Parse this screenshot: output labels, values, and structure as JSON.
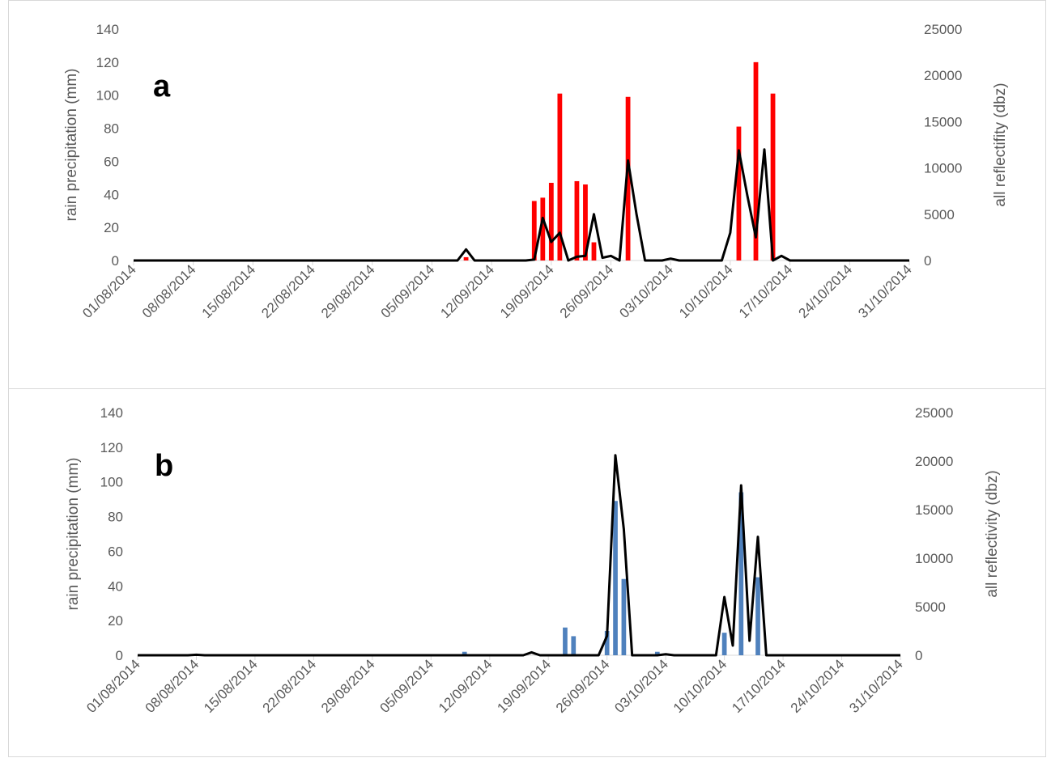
{
  "chart_data": [
    {
      "type": "bar",
      "panel_label": "a",
      "x_tick_labels": [
        "01/08/2014",
        "08/08/2014",
        "15/08/2014",
        "22/08/2014",
        "29/08/2014",
        "05/09/2014",
        "12/09/2014",
        "19/09/2014",
        "26/09/2014",
        "03/10/2014",
        "10/10/2014",
        "17/10/2014",
        "24/10/2014",
        "31/10/2014"
      ],
      "xlim": [
        "01/08/2014",
        "31/10/2014"
      ],
      "ylabel": "rain precipitation (mm)",
      "ylim": [
        0,
        140
      ],
      "yticks": [
        0,
        20,
        40,
        60,
        80,
        100,
        120,
        140
      ],
      "y2label": "all reflectifity (dbz)",
      "y2lim": [
        0,
        25000
      ],
      "y2ticks": [
        0,
        5000,
        10000,
        15000,
        20000,
        25000
      ],
      "bar_color": "#ff0000",
      "line_color": "#000000",
      "series": [
        {
          "type": "bar",
          "axis": "left",
          "points": [
            [
              "09/09/2014",
              2
            ],
            [
              "17/09/2014",
              36
            ],
            [
              "18/09/2014",
              38
            ],
            [
              "19/09/2014",
              47
            ],
            [
              "20/09/2014",
              101
            ],
            [
              "22/09/2014",
              48
            ],
            [
              "23/09/2014",
              46
            ],
            [
              "24/09/2014",
              11
            ],
            [
              "28/09/2014",
              99
            ],
            [
              "11/10/2014",
              81
            ],
            [
              "13/10/2014",
              120
            ],
            [
              "15/10/2014",
              101
            ]
          ]
        },
        {
          "type": "line",
          "axis": "right",
          "points": [
            [
              "01/08/2014",
              0
            ],
            [
              "02/09/2014",
              0
            ],
            [
              "08/09/2014",
              0
            ],
            [
              "09/09/2014",
              1200
            ],
            [
              "10/09/2014",
              0
            ],
            [
              "16/09/2014",
              0
            ],
            [
              "17/09/2014",
              100
            ],
            [
              "18/09/2014",
              4600
            ],
            [
              "19/09/2014",
              2000
            ],
            [
              "20/09/2014",
              3000
            ],
            [
              "21/09/2014",
              0
            ],
            [
              "22/09/2014",
              400
            ],
            [
              "23/09/2014",
              500
            ],
            [
              "24/09/2014",
              5000
            ],
            [
              "25/09/2014",
              300
            ],
            [
              "26/09/2014",
              500
            ],
            [
              "27/09/2014",
              0
            ],
            [
              "28/09/2014",
              10800
            ],
            [
              "29/09/2014",
              5000
            ],
            [
              "30/09/2014",
              0
            ],
            [
              "02/10/2014",
              0
            ],
            [
              "03/10/2014",
              200
            ],
            [
              "04/10/2014",
              0
            ],
            [
              "09/10/2014",
              0
            ],
            [
              "10/10/2014",
              3000
            ],
            [
              "11/10/2014",
              11900
            ],
            [
              "12/10/2014",
              7000
            ],
            [
              "13/10/2014",
              2500
            ],
            [
              "14/10/2014",
              12000
            ],
            [
              "15/10/2014",
              0
            ],
            [
              "16/10/2014",
              500
            ],
            [
              "17/10/2014",
              0
            ],
            [
              "31/10/2014",
              0
            ]
          ]
        }
      ]
    },
    {
      "type": "bar",
      "panel_label": "b",
      "x_tick_labels": [
        "01/08/2014",
        "08/08/2014",
        "15/08/2014",
        "22/08/2014",
        "29/08/2014",
        "05/09/2014",
        "12/09/2014",
        "19/09/2014",
        "26/09/2014",
        "03/10/2014",
        "10/10/2014",
        "17/10/2014",
        "24/10/2014",
        "31/10/2014"
      ],
      "xlim": [
        "01/08/2014",
        "31/10/2014"
      ],
      "ylabel": "rain precipitation (mm)",
      "ylim": [
        0,
        140
      ],
      "yticks": [
        0,
        20,
        40,
        60,
        80,
        100,
        120,
        140
      ],
      "y2label": "all reflectivity (dbz)",
      "y2lim": [
        0,
        25000
      ],
      "y2ticks": [
        0,
        5000,
        10000,
        15000,
        20000,
        25000
      ],
      "bar_color": "#4f81bd",
      "line_color": "#000000",
      "series": [
        {
          "type": "bar",
          "axis": "left",
          "points": [
            [
              "09/09/2014",
              2
            ],
            [
              "21/09/2014",
              16
            ],
            [
              "22/09/2014",
              11
            ],
            [
              "26/09/2014",
              14
            ],
            [
              "27/09/2014",
              89
            ],
            [
              "28/09/2014",
              44
            ],
            [
              "02/10/2014",
              2
            ],
            [
              "10/10/2014",
              13
            ],
            [
              "12/10/2014",
              94
            ],
            [
              "14/10/2014",
              45
            ]
          ]
        },
        {
          "type": "line",
          "axis": "right",
          "points": [
            [
              "01/08/2014",
              0
            ],
            [
              "07/08/2014",
              0
            ],
            [
              "08/08/2014",
              50
            ],
            [
              "09/08/2014",
              0
            ],
            [
              "16/09/2014",
              0
            ],
            [
              "17/09/2014",
              300
            ],
            [
              "18/09/2014",
              0
            ],
            [
              "25/09/2014",
              0
            ],
            [
              "26/09/2014",
              2000
            ],
            [
              "27/09/2014",
              20600
            ],
            [
              "28/09/2014",
              13000
            ],
            [
              "29/09/2014",
              0
            ],
            [
              "02/10/2014",
              0
            ],
            [
              "03/10/2014",
              100
            ],
            [
              "04/10/2014",
              0
            ],
            [
              "09/10/2014",
              0
            ],
            [
              "10/10/2014",
              6000
            ],
            [
              "11/10/2014",
              1000
            ],
            [
              "12/10/2014",
              17500
            ],
            [
              "13/10/2014",
              1500
            ],
            [
              "14/10/2014",
              12200
            ],
            [
              "15/10/2014",
              0
            ],
            [
              "31/10/2014",
              0
            ]
          ]
        }
      ]
    }
  ]
}
